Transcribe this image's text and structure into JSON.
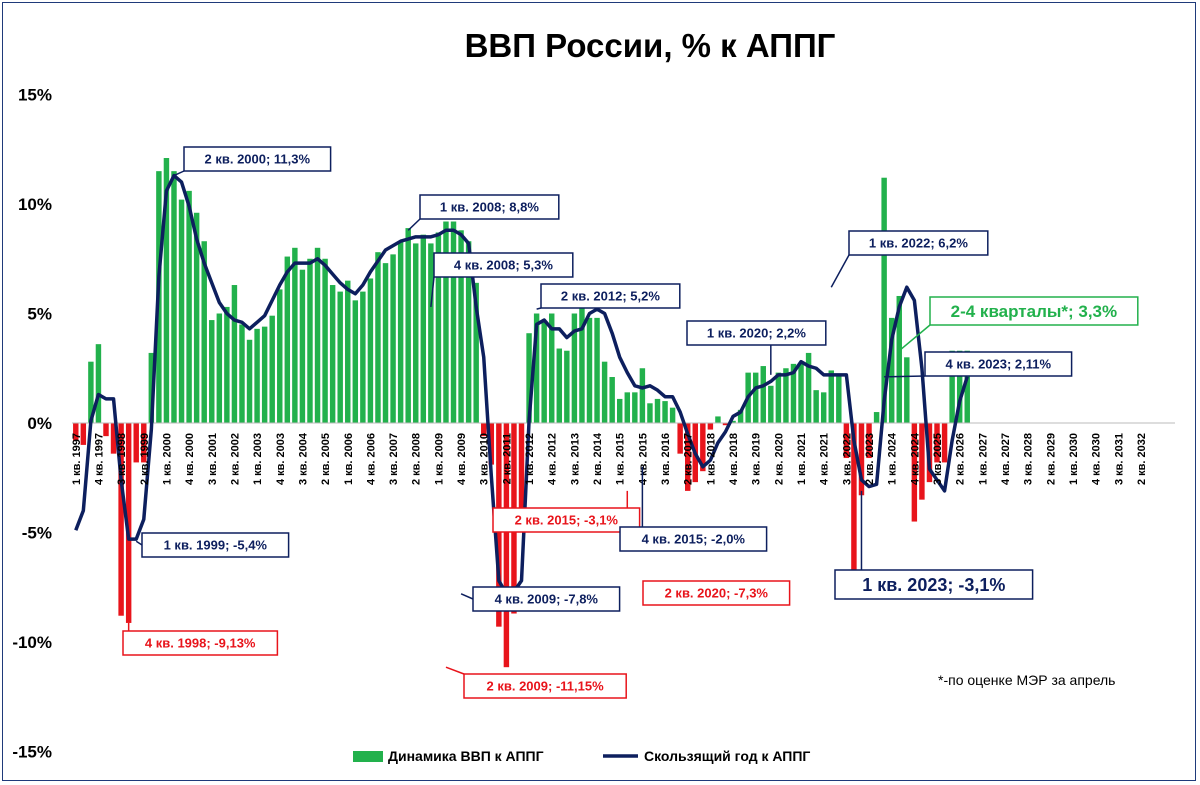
{
  "chart_data": {
    "type": "bar",
    "title": "ВВП России, % к АППГ",
    "y_axis": {
      "min": -15,
      "max": 15,
      "ticks": [
        15,
        10,
        5,
        0,
        -5,
        -10,
        -15
      ],
      "tick_labels": [
        "15%",
        "10%",
        "5%",
        "0%",
        "-5%",
        "-10%",
        "-15%"
      ]
    },
    "x_labels": [
      "1 кв. 1997",
      "4 кв. 1997",
      "3 кв. 1998",
      "2 кв. 1999",
      "1 кв. 2000",
      "4 кв. 2000",
      "3 кв. 2001",
      "2 кв. 2002",
      "1 кв. 2003",
      "4 кв. 2003",
      "3 кв. 2004",
      "2 кв. 2005",
      "1 кв. 2006",
      "4 кв. 2006",
      "3 кв. 2007",
      "2 кв. 2008",
      "1 кв. 2009",
      "4 кв. 2009",
      "3 кв. 2010",
      "2 кв. 2011",
      "1 кв. 2012",
      "4 кв. 2012",
      "3 кв. 2013",
      "2 кв. 2014",
      "1 кв. 2015",
      "4 кв. 2015",
      "3 кв. 2016",
      "2 кв. 2017",
      "1 кв. 2018",
      "4 кв. 2018",
      "3 кв. 2019",
      "2 кв. 2020",
      "1 кв. 2021",
      "4 кв. 2021",
      "3 кв. 2022",
      "2 кв. 2023",
      "1 кв. 2024",
      "4 кв. 2024",
      "3 кв. 2025",
      "2 кв. 2026",
      "1 кв. 2027",
      "4 кв. 2027",
      "3 кв. 2028",
      "2 кв. 2029",
      "1 кв. 2030",
      "4 кв. 2030",
      "3 кв. 2031",
      "2 кв. 2032"
    ],
    "start_quarter": "1 кв. 1997",
    "n_quarters": 146,
    "series": [
      {
        "name": "Динамика ВВП к АППГ",
        "type": "bar",
        "color_positive": "#22b14c",
        "color_negative": "#e8141b",
        "values": [
          -0.8,
          -1.0,
          2.8,
          3.6,
          -0.6,
          -1.4,
          -8.8,
          -9.13,
          -1.8,
          -1.8,
          3.2,
          11.5,
          12.1,
          11.5,
          10.2,
          10.6,
          9.6,
          8.3,
          4.7,
          5.0,
          5.3,
          6.3,
          4.5,
          3.8,
          4.3,
          4.4,
          4.9,
          6.1,
          7.6,
          8.0,
          7.0,
          7.5,
          8.0,
          7.5,
          6.3,
          6.0,
          6.5,
          5.6,
          6.0,
          6.6,
          7.8,
          7.3,
          7.7,
          8.3,
          8.9,
          8.2,
          8.6,
          8.2,
          8.7,
          9.2,
          9.2,
          8.8,
          8.3,
          6.4,
          -0.6,
          -1.9,
          -9.3,
          -11.15,
          -8.7,
          -4.0,
          4.1,
          5.0,
          4.6,
          5.0,
          3.4,
          3.3,
          5.0,
          5.3,
          4.8,
          4.8,
          2.8,
          2.1,
          1.1,
          1.4,
          1.4,
          2.5,
          0.9,
          1.1,
          1.0,
          0.7,
          -1.4,
          -3.1,
          -2.7,
          -2.2,
          -0.3,
          0.3,
          -0.1,
          0.1,
          0.6,
          2.3,
          2.3,
          2.6,
          1.7,
          2.3,
          2.5,
          2.7,
          2.7,
          3.2,
          1.5,
          1.4,
          2.4,
          2.2,
          -1.6,
          -7.3,
          -3.3,
          -1.6,
          0.5,
          11.2,
          4.8,
          5.8,
          3.0,
          -4.5,
          -3.5,
          -2.7,
          -1.8,
          -1.8,
          3.3,
          3.3,
          3.3
        ]
      },
      {
        "name": "Скользящий год к АППГ",
        "type": "line",
        "color": "#0d1f5e",
        "values": [
          -4.9,
          -4.0,
          0.1,
          1.3,
          1.1,
          1.1,
          -2.6,
          -5.3,
          -5.3,
          -4.4,
          -0.3,
          6.7,
          10.6,
          11.3,
          11.0,
          9.9,
          8.4,
          7.3,
          6.4,
          5.5,
          5.0,
          4.7,
          4.6,
          4.3,
          4.6,
          4.9,
          5.6,
          6.3,
          6.9,
          7.3,
          7.3,
          7.3,
          7.5,
          7.2,
          6.8,
          6.4,
          6.1,
          5.9,
          6.3,
          6.9,
          7.4,
          7.9,
          8.1,
          8.3,
          8.4,
          8.5,
          8.5,
          8.5,
          8.6,
          8.8,
          8.8,
          8.6,
          8.2,
          5.3,
          3.0,
          -2.4,
          -7.2,
          -7.8,
          -7.7,
          -7.2,
          0.1,
          4.5,
          4.7,
          4.3,
          4.3,
          3.9,
          4.2,
          4.3,
          5.0,
          5.2,
          5.0,
          4.1,
          3.0,
          2.3,
          1.7,
          1.6,
          1.7,
          1.5,
          1.2,
          1.2,
          0.5,
          -0.5,
          -1.4,
          -2.0,
          -1.7,
          -0.9,
          -0.4,
          0.3,
          0.5,
          1.2,
          1.6,
          1.7,
          1.9,
          2.2,
          2.2,
          2.3,
          2.8,
          2.6,
          2.5,
          2.2,
          2.2,
          2.2,
          2.2,
          -0.8,
          -2.6,
          -2.9,
          -2.8,
          1.0,
          3.8,
          5.3,
          6.2,
          5.6,
          2.5,
          -2.1,
          -2.6,
          -3.1,
          -0.8,
          1.0,
          2.11
        ]
      }
    ],
    "annotations": [
      {
        "text": "2 кв. 2000; 11,3%",
        "color": "#0d1f5e",
        "quarter_index": 13,
        "value": 11.3
      },
      {
        "text": "1 кв. 2008; 8,8%",
        "color": "#0d1f5e",
        "quarter_index": 44,
        "value": 8.8
      },
      {
        "text": "4 кв. 2008; 5,3%",
        "color": "#0d1f5e",
        "quarter_index": 47,
        "value": 5.3
      },
      {
        "text": "2 кв. 2012; 5,2%",
        "color": "#0d1f5e",
        "quarter_index": 61,
        "value": 5.2
      },
      {
        "text": "1 кв. 2020; 2,2%",
        "color": "#0d1f5e",
        "quarter_index": 92,
        "value": 2.2
      },
      {
        "text": "1 кв. 2022; 6,2%",
        "color": "#0d1f5e",
        "quarter_index": 100,
        "value": 6.2
      },
      {
        "text": "1 кв. 1999; -5,4%",
        "color": "#0d1f5e",
        "quarter_index": 8,
        "value": -5.4
      },
      {
        "text": "4 кв. 1998; -9,13%",
        "color": "#e8141b",
        "quarter_index": 7,
        "value": -9.13
      },
      {
        "text": "4 кв. 2009; -7,8%",
        "color": "#0d1f5e",
        "quarter_index": 51,
        "value": -7.8
      },
      {
        "text": "2 кв. 2009; -11,15%",
        "color": "#e8141b",
        "quarter_index": 49,
        "value": -11.15
      },
      {
        "text": "2 кв. 2015; -3,1%",
        "color": "#e8141b",
        "quarter_index": 73,
        "value": -3.1
      },
      {
        "text": "4 кв. 2015; -2,0%",
        "color": "#0d1f5e",
        "quarter_index": 75,
        "value": -2.0
      },
      {
        "text": "2 кв. 2020; -7,3%",
        "color": "#e8141b",
        "quarter_index": 93,
        "value": -7.3
      },
      {
        "text": "1 кв. 2023; -3,1%",
        "color": "#0d1f5e",
        "quarter_index": 104,
        "value": -3.1
      },
      {
        "text": "4 кв. 2023; 2,11%",
        "color": "#0d1f5e",
        "quarter_index": 107,
        "value": 2.11
      },
      {
        "text": "2-4 кварталы*; 3,3%",
        "color": "#22b14c",
        "quarter_index": 109,
        "value": 3.3
      }
    ],
    "footnote": "*-по оценке МЭР за апрель",
    "legend": {
      "position": "bottom"
    }
  }
}
